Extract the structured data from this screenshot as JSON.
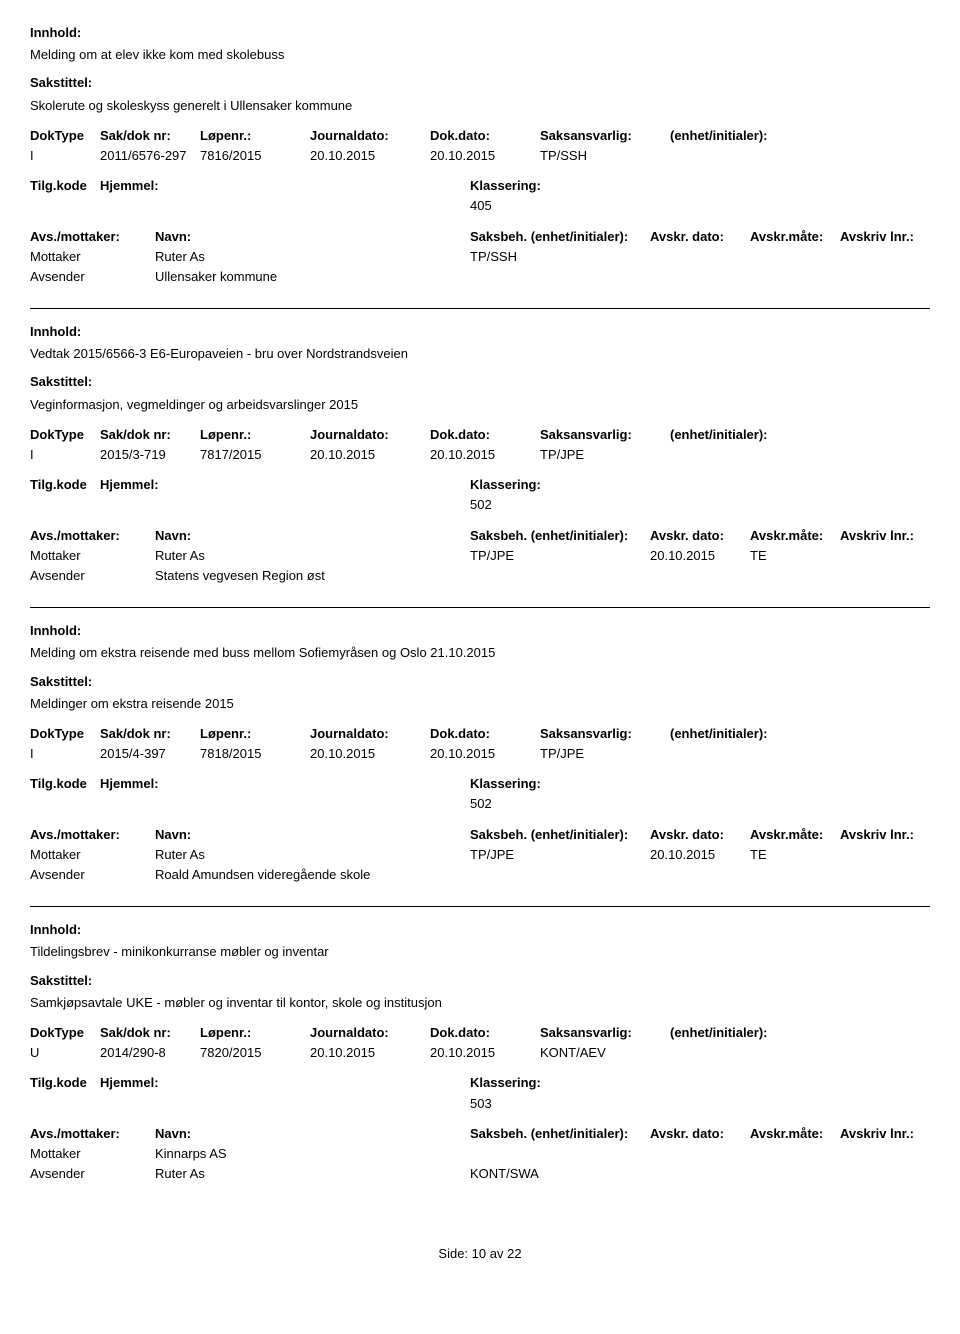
{
  "labels": {
    "innhold": "Innhold:",
    "sakstittel": "Sakstittel:",
    "doktype": "DokType",
    "sakdok": "Sak/dok nr:",
    "lopenr": "Løpenr.:",
    "journaldato": "Journaldato:",
    "dokdato": "Dok.dato:",
    "saksansvarlig": "Saksansvarlig:",
    "enhet": "(enhet/initialer):",
    "tilgkode": "Tilg.kode",
    "hjemmel": "Hjemmel:",
    "klassering": "Klassering:",
    "avsmottaker": "Avs./mottaker:",
    "navn": "Navn:",
    "saksbeh": "Saksbeh.",
    "saksbeh_enhet": "(enhet/initialer):",
    "avskrdato": "Avskr. dato:",
    "avskrmate": "Avskr.måte:",
    "avskrivlnr": "Avskriv lnr.:",
    "mottaker": "Mottaker",
    "avsender": "Avsender"
  },
  "records": [
    {
      "innhold": "Melding om at elev ikke kom med skolebuss",
      "sakstittel": "Skolerute og skoleskyss generelt i Ullensaker kommune",
      "doktype": "I",
      "sakdok": "2011/6576-297",
      "lopenr": "7816/2015",
      "journaldato": "20.10.2015",
      "dokdato": "20.10.2015",
      "saksansvarlig": "TP/SSH",
      "klassering": "405",
      "show_full_avs_header": false,
      "mottaker_navn": "Ruter As",
      "mottaker_saksbeh": "TP/SSH",
      "mottaker_avskrdato": "",
      "mottaker_avskrmate": "",
      "avsender_navn": "Ullensaker kommune",
      "avsender_saksbeh": ""
    },
    {
      "innhold": "Vedtak 2015/6566-3 E6-Europaveien - bru over Nordstrandsveien",
      "sakstittel": "Veginformasjon, vegmeldinger og arbeidsvarslinger 2015",
      "doktype": "I",
      "sakdok": "2015/3-719",
      "lopenr": "7817/2015",
      "journaldato": "20.10.2015",
      "dokdato": "20.10.2015",
      "saksansvarlig": "TP/JPE",
      "klassering": "502",
      "show_full_avs_header": false,
      "mottaker_navn": "Ruter As",
      "mottaker_saksbeh": "TP/JPE",
      "mottaker_avskrdato": "20.10.2015",
      "mottaker_avskrmate": "TE",
      "avsender_navn": "Statens vegvesen Region øst",
      "avsender_saksbeh": ""
    },
    {
      "innhold": "Melding om ekstra reisende med buss mellom Sofiemyråsen og Oslo 21.10.2015",
      "sakstittel": "Meldinger om ekstra reisende 2015",
      "doktype": "I",
      "sakdok": "2015/4-397",
      "lopenr": "7818/2015",
      "journaldato": "20.10.2015",
      "dokdato": "20.10.2015",
      "saksansvarlig": "TP/JPE",
      "klassering": "502",
      "show_full_avs_header": true,
      "mottaker_navn": "Ruter As",
      "mottaker_saksbeh": "TP/JPE",
      "mottaker_avskrdato": "20.10.2015",
      "mottaker_avskrmate": "TE",
      "avsender_navn": "Roald Amundsen videregående skole",
      "avsender_saksbeh": ""
    },
    {
      "innhold": "Tildelingsbrev - minikonkurranse møbler og inventar",
      "sakstittel": "Samkjøpsavtale UKE - møbler og inventar til kontor, skole og institusjon",
      "doktype": "U",
      "sakdok": "2014/290-8",
      "lopenr": "7820/2015",
      "journaldato": "20.10.2015",
      "dokdato": "20.10.2015",
      "saksansvarlig": "KONT/AEV",
      "klassering": "503",
      "show_full_avs_header": true,
      "mottaker_navn": "Kinnarps AS",
      "mottaker_saksbeh": "",
      "mottaker_avskrdato": "",
      "mottaker_avskrmate": "",
      "avsender_navn": "Ruter As",
      "avsender_saksbeh": "KONT/SWA"
    }
  ],
  "footer": {
    "side_label": "Side:",
    "page": "10",
    "av": "av",
    "total": "22"
  }
}
